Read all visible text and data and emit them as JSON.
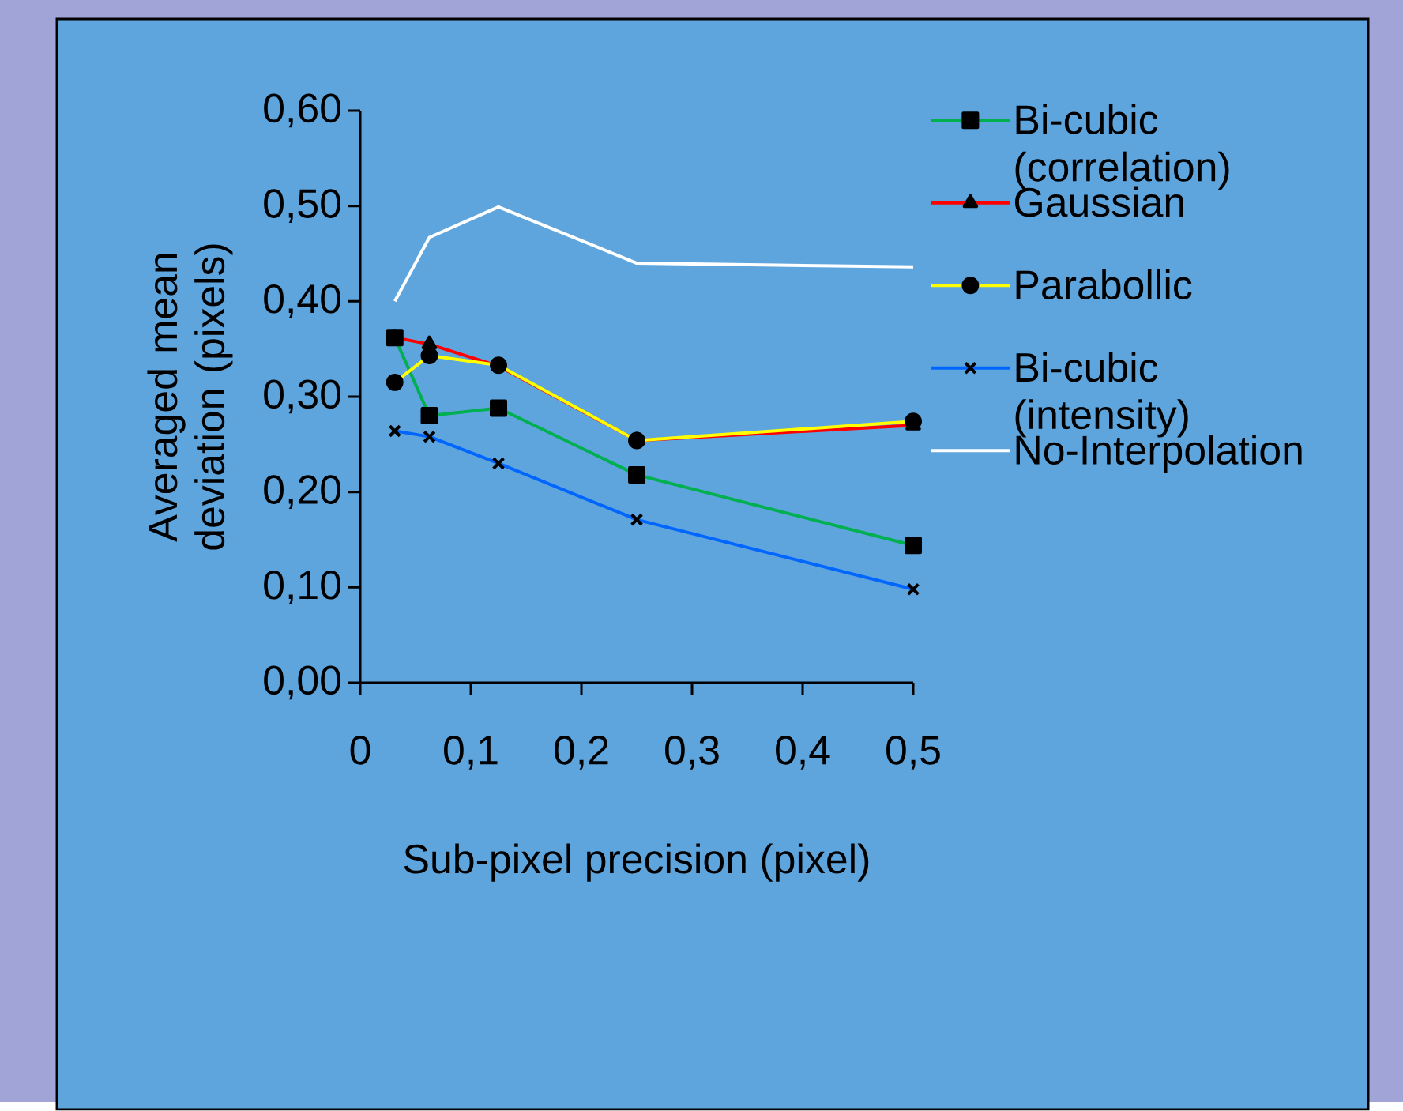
{
  "chart_data": {
    "type": "line",
    "xlabel": "Sub-pixel precision (pixel)",
    "ylabel": "Averaged mean deviation (pixels)",
    "x": [
      0.03125,
      0.0625,
      0.125,
      0.25,
      0.5
    ],
    "series": [
      {
        "name": "Bi-cubic (correlation)",
        "color": "#00b050",
        "marker": "square",
        "values": [
          0.362,
          0.28,
          0.288,
          0.218,
          0.144
        ]
      },
      {
        "name": "Gaussian",
        "color": "#ff0000",
        "marker": "triangle",
        "values": [
          0.362,
          0.355,
          0.332,
          0.254,
          0.27
        ]
      },
      {
        "name": "Parabollic",
        "color": "#ffff00",
        "marker": "circle",
        "values": [
          0.315,
          0.343,
          0.333,
          0.254,
          0.274
        ]
      },
      {
        "name": "Bi-cubic (intensity)",
        "color": "#0066ff",
        "marker": "cross",
        "values": [
          0.264,
          0.258,
          0.23,
          0.171,
          0.098
        ]
      },
      {
        "name": "No-Interpolation",
        "color": "#ffffff",
        "marker": "none",
        "values": [
          0.4,
          0.467,
          0.499,
          0.44,
          0.436
        ]
      }
    ],
    "xlim": [
      0,
      0.5
    ],
    "ylim": [
      0,
      0.6
    ],
    "xticks": [
      {
        "value": 0,
        "label": "0"
      },
      {
        "value": 0.1,
        "label": "0,1"
      },
      {
        "value": 0.2,
        "label": "0,2"
      },
      {
        "value": 0.3,
        "label": "0,3"
      },
      {
        "value": 0.4,
        "label": "0,4"
      },
      {
        "value": 0.5,
        "label": "0,5"
      }
    ],
    "yticks": [
      {
        "value": 0,
        "label": "0,00"
      },
      {
        "value": 0.1,
        "label": "0,10"
      },
      {
        "value": 0.2,
        "label": "0,20"
      },
      {
        "value": 0.3,
        "label": "0,30"
      },
      {
        "value": 0.4,
        "label": "0,40"
      },
      {
        "value": 0.5,
        "label": "0,50"
      },
      {
        "value": 0.6,
        "label": "0,60"
      }
    ],
    "grid": false,
    "legend": "right"
  }
}
